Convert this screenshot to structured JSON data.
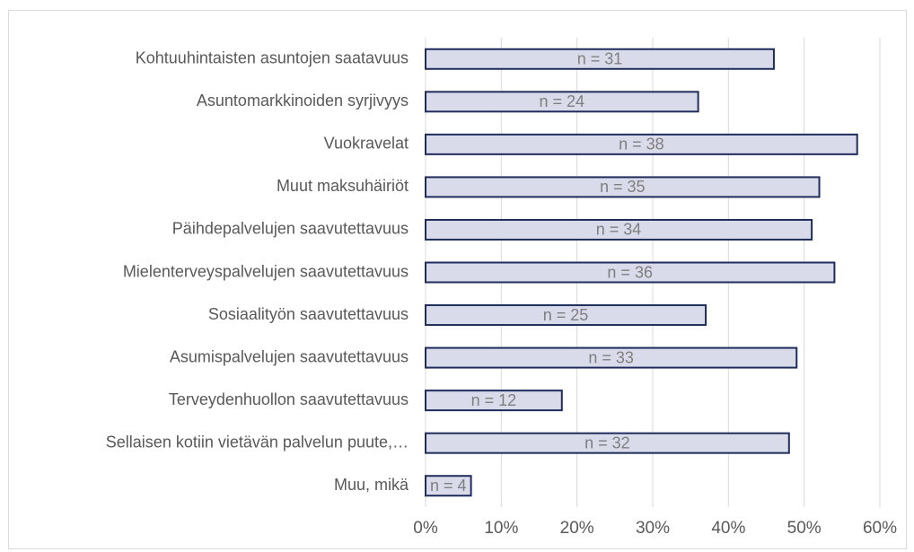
{
  "chart_data": {
    "type": "barh",
    "categories": [
      "Kohtuuhintaisten asuntojen saatavuus",
      "Asuntomarkkinoiden syrjivyys",
      "Vuokravelat",
      "Muut maksuhäiriöt",
      "Päihdepalvelujen saavutettavuus",
      "Mielenterveyspalvelujen saavutettavuus",
      "Sosiaalityön saavutettavuus",
      "Asumispalvelujen saavutettavuus",
      "Terveydenhuollon saavutettavuus",
      "Sellaisen kotiin vietävän palvelun puute,…",
      "Muu, mikä"
    ],
    "values": [
      46,
      36,
      57,
      52,
      51,
      54,
      37,
      49,
      18,
      48,
      6
    ],
    "n_labels": [
      "n = 31",
      "n = 24",
      "n = 38",
      "n = 35",
      "n = 34",
      "n = 36",
      "n = 25",
      "n = 33",
      "n = 12",
      "n = 32",
      "n = 4"
    ],
    "color": "#d9dbea",
    "edge_color": "#1f2d5c",
    "xlim": [
      0,
      60
    ],
    "xticks": [
      {
        "value": 0,
        "label": "0%"
      },
      {
        "value": 10,
        "label": "10%"
      },
      {
        "value": 20,
        "label": "20%"
      },
      {
        "value": 30,
        "label": "30%"
      },
      {
        "value": 40,
        "label": "40%"
      },
      {
        "value": 50,
        "label": "50%"
      },
      {
        "value": 60,
        "label": "60%"
      }
    ],
    "grid": true
  }
}
